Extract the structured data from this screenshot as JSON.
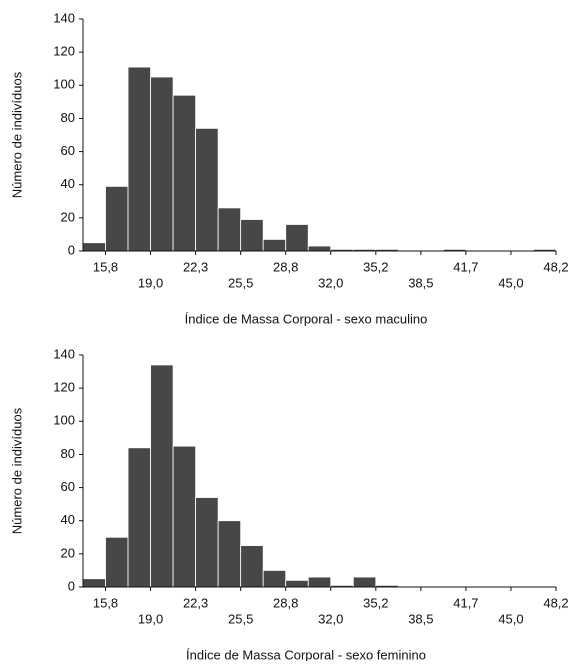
{
  "chart_data": [
    {
      "type": "histogram",
      "color": "#474747",
      "bins": [
        14.18,
        15.8,
        17.42,
        19.04,
        20.66,
        22.28,
        23.9,
        25.52,
        27.14,
        28.76,
        30.38,
        32.0,
        33.62,
        35.24,
        36.86,
        38.48,
        40.1,
        41.72,
        43.34,
        44.96,
        46.58,
        48.2
      ],
      "values": [
        5,
        39,
        111,
        105,
        94,
        74,
        26,
        19,
        7,
        16,
        3,
        1,
        1,
        1,
        0,
        0,
        1,
        0,
        0,
        0,
        1
      ],
      "xlim": [
        14.18,
        48.2
      ],
      "ylim": [
        0,
        140
      ],
      "xticks": [
        {
          "value": 15.8,
          "label": "15,8"
        },
        {
          "value": 19.04,
          "label": "19,0"
        },
        {
          "value": 22.28,
          "label": "22,3"
        },
        {
          "value": 25.52,
          "label": "25,5"
        },
        {
          "value": 28.76,
          "label": "28,8"
        },
        {
          "value": 32.0,
          "label": "32,0"
        },
        {
          "value": 35.24,
          "label": "35,2"
        },
        {
          "value": 38.48,
          "label": "38,5"
        },
        {
          "value": 41.72,
          "label": "41,7"
        },
        {
          "value": 44.96,
          "label": "45,0"
        },
        {
          "value": 48.2,
          "label": "48,2"
        }
      ],
      "yticks": [
        0,
        20,
        40,
        60,
        80,
        100,
        120,
        140
      ],
      "xlabel": "Índice de Massa Corporal - sexo maculino",
      "ylabel": "Número de indivíduos"
    },
    {
      "type": "histogram",
      "color": "#474747",
      "bins": [
        14.18,
        15.8,
        17.42,
        19.04,
        20.66,
        22.28,
        23.9,
        25.52,
        27.14,
        28.76,
        30.38,
        32.0,
        33.62,
        35.24,
        36.86,
        38.48,
        40.1,
        41.72,
        43.34,
        44.96,
        46.58,
        48.2
      ],
      "values": [
        5,
        30,
        84,
        134,
        85,
        54,
        40,
        25,
        10,
        4,
        6,
        1,
        6,
        1,
        0,
        0,
        0,
        0,
        0,
        0,
        0
      ],
      "xlim": [
        14.18,
        48.2
      ],
      "ylim": [
        0,
        140
      ],
      "xticks": [
        {
          "value": 15.8,
          "label": "15,8"
        },
        {
          "value": 19.04,
          "label": "19,0"
        },
        {
          "value": 22.28,
          "label": "22,3"
        },
        {
          "value": 25.52,
          "label": "25,5"
        },
        {
          "value": 28.76,
          "label": "28,8"
        },
        {
          "value": 32.0,
          "label": "32,0"
        },
        {
          "value": 35.24,
          "label": "35,2"
        },
        {
          "value": 38.48,
          "label": "38,5"
        },
        {
          "value": 41.72,
          "label": "41,7"
        },
        {
          "value": 44.96,
          "label": "45,0"
        },
        {
          "value": 48.2,
          "label": "48,2"
        }
      ],
      "yticks": [
        0,
        20,
        40,
        60,
        80,
        100,
        120,
        140
      ],
      "xlabel": "Índice de Massa Corporal - sexo feminino",
      "ylabel": "Número de indivíduos"
    }
  ]
}
